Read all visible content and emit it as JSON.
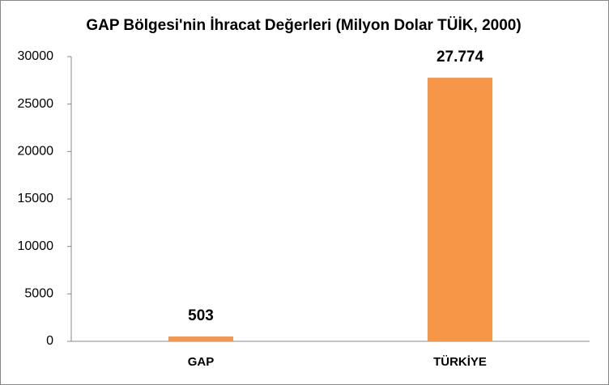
{
  "chart_data": {
    "type": "bar",
    "title": "GAP Bölgesi'nin İhracat Değerleri (Milyon Dolar TÜİK, 2000)",
    "categories": [
      "GAP",
      "TÜRKİYE"
    ],
    "values": [
      503,
      27774
    ],
    "value_labels": [
      "503",
      "27.774"
    ],
    "color": "#f79646",
    "ylim": [
      0,
      30000
    ],
    "yticks": [
      0,
      5000,
      10000,
      15000,
      20000,
      25000,
      30000
    ],
    "grid": false
  }
}
